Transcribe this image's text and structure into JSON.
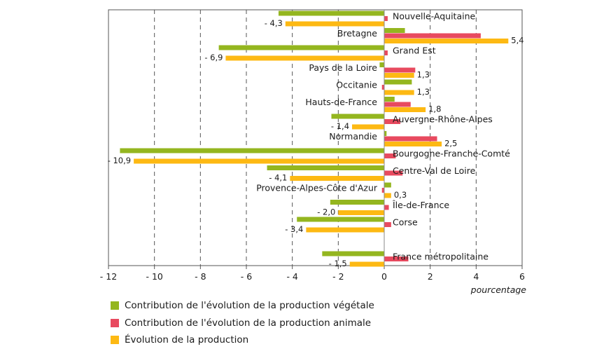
{
  "chart_data": {
    "type": "bar",
    "orientation": "horizontal",
    "xlabel": "pourcentage",
    "xlim": [
      -12,
      6
    ],
    "xticks": [
      -12,
      -10,
      -8,
      -6,
      -4,
      -2,
      0,
      2,
      4,
      6
    ],
    "xtick_labels": [
      "- 12",
      "- 10",
      "- 8",
      "- 6",
      "- 4",
      "- 2",
      "0",
      "2",
      "4",
      "6"
    ],
    "grid": "vertical dashed",
    "legend_position": "bottom",
    "categories": [
      "Nouvelle-Aquitaine",
      "Bretagne",
      "Grand Est",
      "Pays de la Loire",
      "Occitanie",
      "Hauts-de-France",
      "Auvergne-Rhône-Alpes",
      "Normandie",
      "Bourgogne-Franche-Comté",
      "Centre-Val de Loire",
      "Provence-Alpes-Côte d'Azur",
      "Île-de-France",
      "Corse",
      "France métropolitaine"
    ],
    "series": [
      {
        "name": "Contribution de l'évolution de la production végétale",
        "color": "#94b61f",
        "values": [
          -4.6,
          0.9,
          -7.2,
          -0.2,
          1.2,
          0.45,
          -2.3,
          0.1,
          -11.5,
          -5.1,
          0.3,
          -2.35,
          -3.8,
          -2.7
        ]
      },
      {
        "name": "Contribution de l'évolution de la production animale",
        "color": "#e84a5f",
        "values": [
          0.15,
          4.2,
          0.15,
          1.35,
          -0.1,
          1.15,
          0.7,
          2.3,
          0.5,
          0.8,
          -0.1,
          0.2,
          0.3,
          1.05
        ]
      },
      {
        "name": "Évolution de la production",
        "color": "#fdb913",
        "values": [
          -4.3,
          5.4,
          -6.9,
          1.3,
          1.3,
          1.8,
          -1.4,
          2.5,
          -10.9,
          -4.1,
          0.3,
          -2.0,
          -3.4,
          -1.5
        ],
        "data_labels": [
          "- 4,3",
          "5,4",
          "- 6,9",
          "1,3",
          "1,3",
          "1,8",
          "- 1,4",
          "2,5",
          "- 10,9",
          "- 4,1",
          "0,3",
          "- 2,0",
          "- 3,4",
          "- 1,5"
        ]
      }
    ]
  }
}
